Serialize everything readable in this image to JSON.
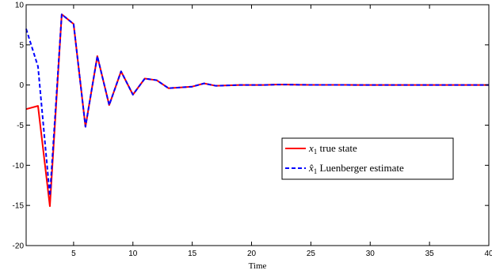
{
  "chart_data": {
    "type": "line",
    "title": "",
    "xlabel": "Time",
    "ylabel": "",
    "xlim": [
      1,
      40
    ],
    "ylim": [
      -20,
      10
    ],
    "xticks": [
      5,
      10,
      15,
      20,
      25,
      30,
      35,
      40
    ],
    "yticks": [
      -20,
      -15,
      -10,
      -5,
      0,
      5,
      10
    ],
    "legend_position": "middle-right",
    "grid": false,
    "series": [
      {
        "name_main": "x",
        "name_sub": "1",
        "name_rest": " true state",
        "color": "#ff0000",
        "dash": "solid",
        "x": [
          1,
          2,
          3,
          4,
          5,
          6,
          7,
          8,
          9,
          10,
          11,
          12,
          13,
          14,
          15,
          16,
          17,
          18,
          19,
          20,
          21,
          22,
          23,
          24,
          25,
          26,
          27,
          28,
          29,
          30,
          31,
          32,
          33,
          34,
          35,
          36,
          37,
          38,
          39,
          40
        ],
        "y": [
          -3.0,
          -2.6,
          -15.1,
          8.8,
          7.6,
          -5.2,
          3.6,
          -2.5,
          1.7,
          -1.2,
          0.8,
          0.6,
          -0.4,
          -0.3,
          -0.2,
          0.2,
          -0.1,
          -0.05,
          0.0,
          0.0,
          0.0,
          0.05,
          0.05,
          0.03,
          0.02,
          0.02,
          0.01,
          0.01,
          0.0,
          0.0,
          0.0,
          0.0,
          0.0,
          0.0,
          0.0,
          0.0,
          0.0,
          0.0,
          0.0,
          0.0
        ]
      },
      {
        "name_main": "x̂",
        "name_sub": "1",
        "name_rest": " Luenberger estimate",
        "color": "#0000ff",
        "dash": "dashed",
        "x": [
          1,
          2,
          3,
          4,
          5,
          6,
          7,
          8,
          9,
          10,
          11,
          12,
          13,
          14,
          15,
          16,
          17,
          18,
          19,
          20,
          21,
          22,
          23,
          24,
          25,
          26,
          27,
          28,
          29,
          30,
          31,
          32,
          33,
          34,
          35,
          36,
          37,
          38,
          39,
          40
        ],
        "y": [
          7.0,
          2.3,
          -13.8,
          8.8,
          7.6,
          -5.2,
          3.6,
          -2.5,
          1.7,
          -1.2,
          0.8,
          0.6,
          -0.4,
          -0.3,
          -0.2,
          0.2,
          -0.1,
          -0.05,
          0.0,
          0.0,
          0.0,
          0.05,
          0.05,
          0.03,
          0.02,
          0.02,
          0.01,
          0.01,
          0.0,
          0.0,
          0.0,
          0.0,
          0.0,
          0.0,
          0.0,
          0.0,
          0.0,
          0.0,
          0.0,
          0.0
        ]
      }
    ]
  }
}
